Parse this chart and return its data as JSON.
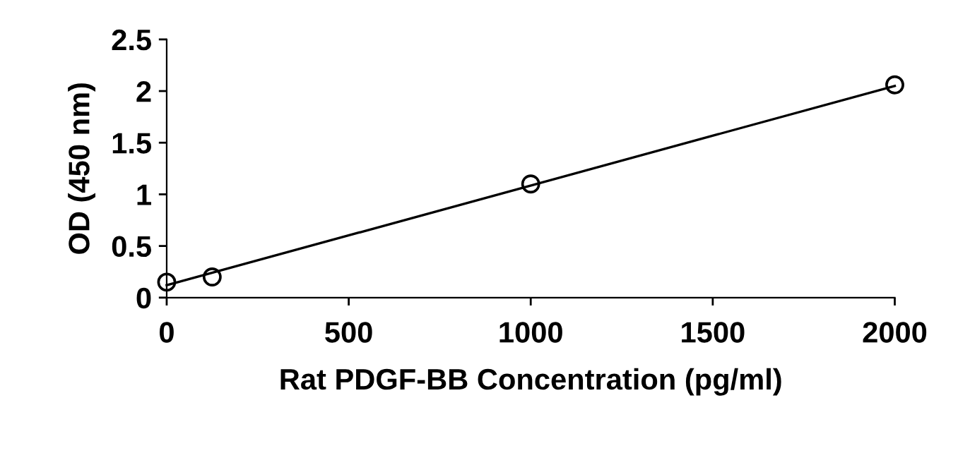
{
  "chart_data": {
    "type": "scatter",
    "xlabel": "Rat PDGF-BB Concentration (pg/ml)",
    "ylabel": "OD (450 nm)",
    "xlim": [
      0,
      2000
    ],
    "xticks": [
      0,
      500,
      1000,
      1500,
      2000
    ],
    "ylim": [
      0,
      2.5
    ],
    "yticks": [
      0,
      0.5,
      1,
      1.5,
      2,
      2.5
    ],
    "grid": false,
    "legend": false,
    "series": [
      {
        "marker": "circle",
        "color": "#000000",
        "x": [
          0,
          125,
          1000,
          2000
        ],
        "values": [
          0.15,
          0.2,
          1.1,
          2.06
        ]
      },
      {
        "type": "line",
        "marker": "none",
        "color": "#000000",
        "x": [
          0,
          2000
        ],
        "values": [
          0.12,
          2.05
        ]
      }
    ]
  }
}
